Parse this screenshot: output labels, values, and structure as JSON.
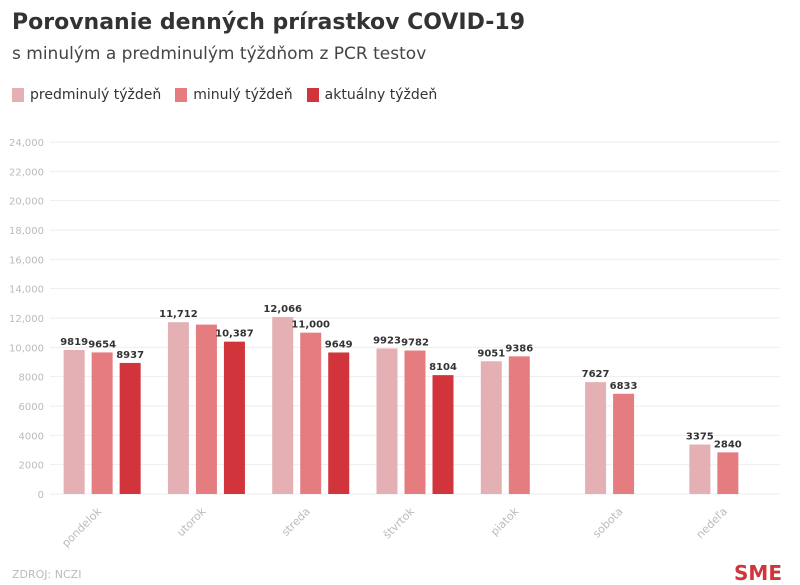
{
  "chart_data": {
    "type": "bar",
    "title": "Porovnanie denných prírastkov COVID-19",
    "subtitle": "s minulým a predminulým týždňom z PCR testov",
    "categories": [
      "pondelok",
      "utorok",
      "streda",
      "štvrtok",
      "piatok",
      "sobota",
      "nedeľa"
    ],
    "series": [
      {
        "name": "predminulý týždeň",
        "color": "#e5b0b3",
        "values": [
          9819,
          11712,
          12066,
          9923,
          9051,
          7627,
          3375
        ],
        "labels": [
          "9819",
          "11,712",
          "12,066",
          "9923",
          "9051",
          "7627",
          "3375"
        ]
      },
      {
        "name": "minulý týždeň",
        "color": "#e57d80",
        "values": [
          9654,
          11550,
          11000,
          9782,
          9386,
          6833,
          2840
        ],
        "labels": [
          "9654",
          "",
          "11,000",
          "9782",
          "9386",
          "6833",
          "2840"
        ]
      },
      {
        "name": "aktuálny týždeň",
        "color": "#d1343a",
        "values": [
          8937,
          10387,
          9649,
          8104,
          null,
          null,
          null
        ],
        "labels": [
          "8937",
          "10,387",
          "9649",
          "8104",
          "",
          "",
          ""
        ]
      }
    ],
    "ylim": [
      0,
      24000
    ],
    "yticks": [
      0,
      2000,
      4000,
      6000,
      8000,
      10000,
      12000,
      14000,
      16000,
      18000,
      20000,
      22000,
      24000
    ],
    "ytick_labels": [
      "0",
      "2000",
      "4000",
      "6000",
      "8000",
      "10,000",
      "12,000",
      "14,000",
      "16,000",
      "18,000",
      "20,000",
      "22,000",
      "24,000"
    ],
    "grid": true,
    "legend": "top-left"
  },
  "source": "ZDROJ: NCZI",
  "logo": "SME"
}
